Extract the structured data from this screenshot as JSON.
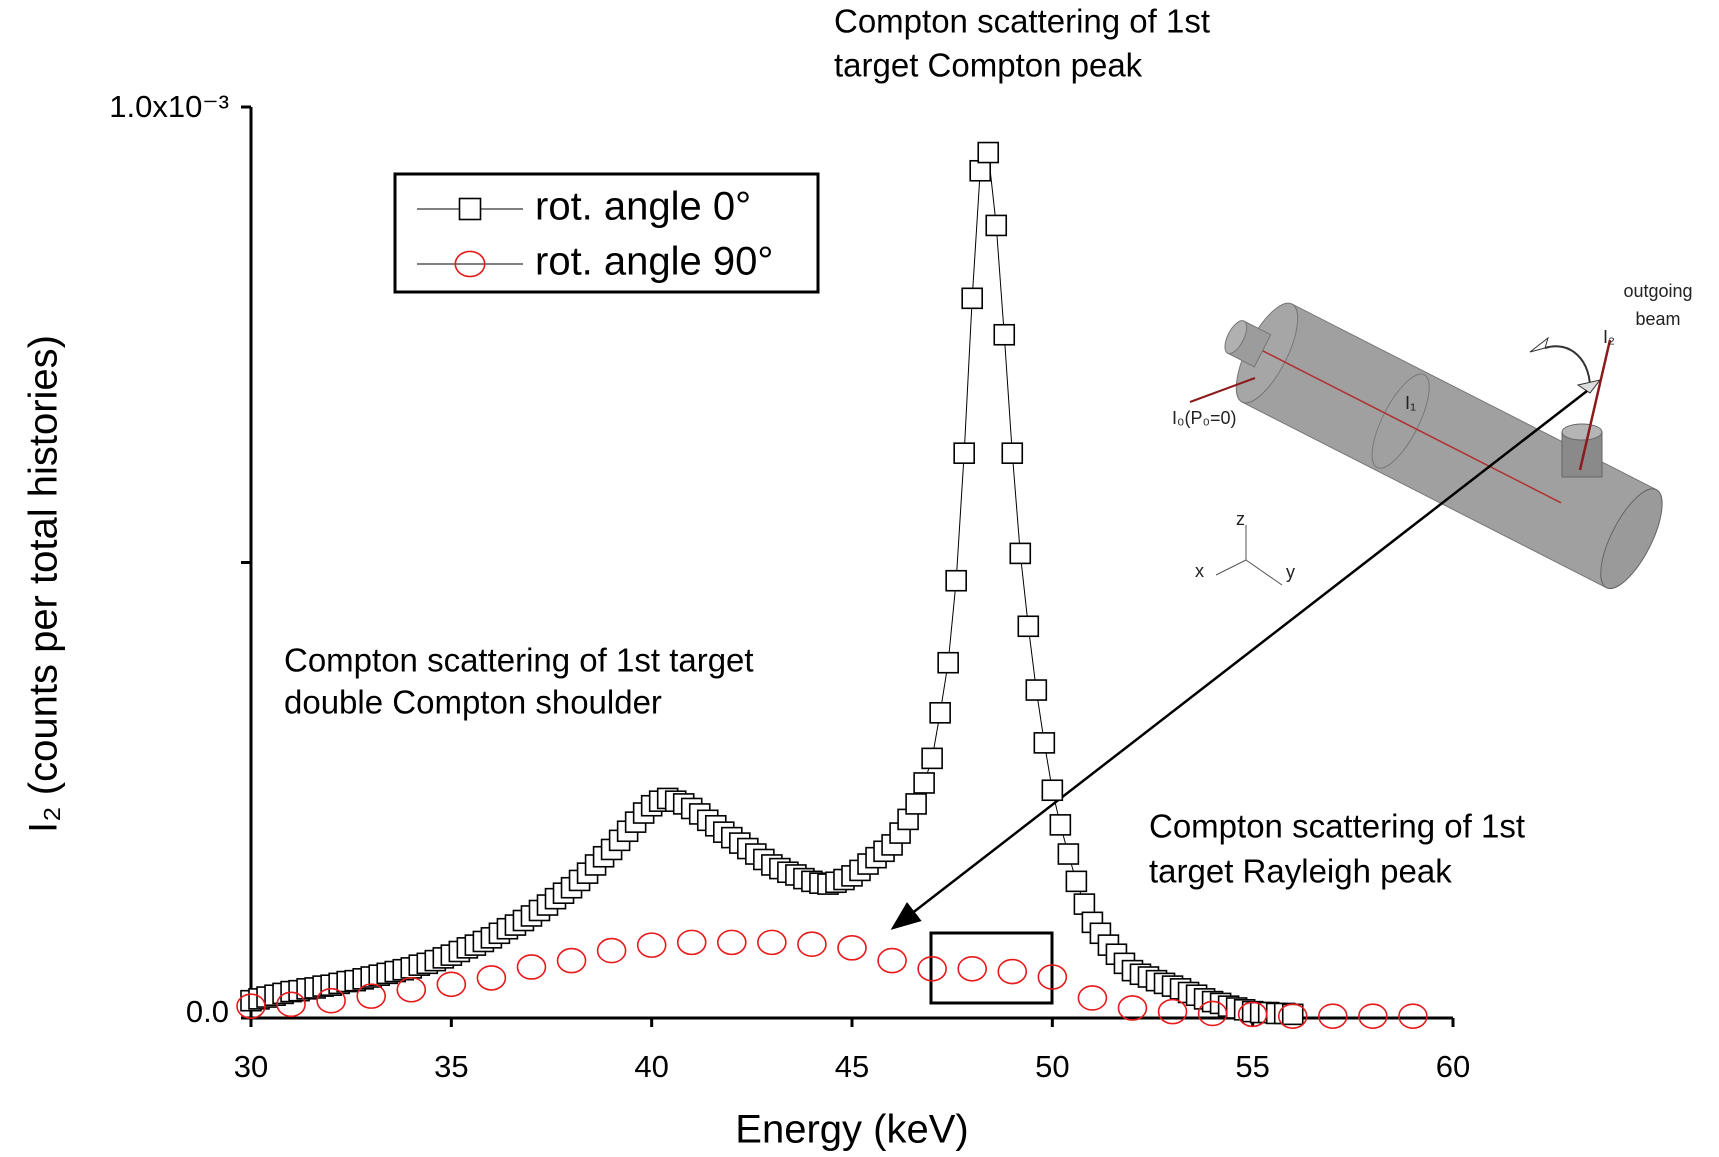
{
  "chart_data": {
    "type": "scatter",
    "x_label": "Energy (keV)",
    "y_label": "I₂ (counts per total histories)",
    "xlim": [
      30,
      60
    ],
    "xticks": [
      30,
      35,
      40,
      45,
      50,
      55,
      60
    ],
    "ylim": [
      0,
      0.001
    ],
    "yticks": [
      {
        "value": 0,
        "label": "0.0"
      },
      {
        "value": 0.0005,
        "label": null
      },
      {
        "value": 0.001,
        "label": "1.0x10⁻³"
      }
    ],
    "grid": false,
    "legend": "upper left",
    "annotations": [
      [
        "Compton scattering of 1st",
        "target Compton peak"
      ],
      [
        "Compton scattering of 1st  target",
        "double Compton shoulder"
      ],
      [
        "Compton scattering of 1st",
        "target Rayleigh peak"
      ]
    ],
    "inset_labels": [
      "outgoing",
      "beam",
      "I₂",
      "I₁",
      "I₀(P₀=0)",
      "x",
      "y",
      "z"
    ],
    "series": [
      {
        "name": "rot. angle 0°",
        "color": "#000000",
        "marker": "square",
        "line": true,
        "x": [
          30,
          30.2,
          30.4,
          30.6,
          30.8,
          31,
          31.2,
          31.4,
          31.6,
          31.8,
          32,
          32.2,
          32.4,
          32.6,
          32.8,
          33,
          33.2,
          33.4,
          33.6,
          33.8,
          34,
          34.2,
          34.4,
          34.6,
          34.8,
          35,
          35.2,
          35.4,
          35.6,
          35.8,
          36,
          36.2,
          36.4,
          36.6,
          36.8,
          37,
          37.2,
          37.4,
          37.6,
          37.8,
          38,
          38.2,
          38.4,
          38.6,
          38.8,
          39,
          39.2,
          39.4,
          39.6,
          39.8,
          40,
          40.2,
          40.4,
          40.6,
          40.8,
          41,
          41.2,
          41.4,
          41.6,
          41.8,
          42,
          42.2,
          42.4,
          42.6,
          42.8,
          43,
          43.2,
          43.4,
          43.6,
          43.8,
          44,
          44.2,
          44.4,
          44.6,
          44.8,
          45,
          45.2,
          45.4,
          45.6,
          45.8,
          46,
          46.2,
          46.4,
          46.6,
          46.8,
          47,
          47.2,
          47.4,
          47.6,
          47.8,
          48,
          48.2,
          48.4,
          48.6,
          48.8,
          49,
          49.2,
          49.4,
          49.6,
          49.8,
          50,
          50.2,
          50.4,
          50.6,
          50.8,
          51,
          51.2,
          51.4,
          51.6,
          51.8,
          52,
          52.2,
          52.4,
          52.6,
          52.8,
          53,
          53.2,
          53.4,
          53.6,
          53.8,
          54,
          54.2,
          54.4,
          54.6,
          54.8,
          55,
          55.2,
          55.4,
          55.6,
          55.8,
          56
        ],
        "values": [
          1.9e-05,
          2.1e-05,
          2.3e-05,
          2.5e-05,
          2.7e-05,
          2.9e-05,
          3e-05,
          3.2e-05,
          3.3e-05,
          3.5e-05,
          3.6e-05,
          3.8e-05,
          4e-05,
          4.1e-05,
          4.3e-05,
          4.5e-05,
          4.7e-05,
          4.9e-05,
          5.1e-05,
          5.3e-05,
          5.5e-05,
          5.8e-05,
          6e-05,
          6.3e-05,
          6.6e-05,
          6.9e-05,
          7.3e-05,
          7.7e-05,
          8e-05,
          8.4e-05,
          8.8e-05,
          9.3e-05,
          9.8e-05,
          0.000102,
          0.000107,
          0.000112,
          0.000118,
          0.000124,
          0.000131,
          0.000137,
          0.000143,
          0.000151,
          0.000159,
          0.000168,
          0.000177,
          0.000185,
          0.000195,
          0.000205,
          0.000215,
          0.000225,
          0.000233,
          0.000238,
          0.000241,
          0.000238,
          0.000235,
          0.00023,
          0.000224,
          0.000217,
          0.000211,
          0.000204,
          0.000198,
          0.000192,
          0.000186,
          0.00018,
          0.000174,
          0.000168,
          0.000164,
          0.00016,
          0.000157,
          0.000153,
          0.00015,
          0.000148,
          0.000147,
          0.000149,
          0.000152,
          0.000156,
          0.000162,
          0.000169,
          0.000176,
          0.000183,
          0.00019,
          0.000203,
          0.000218,
          0.000235,
          0.000258,
          0.000285,
          0.000335,
          0.00039,
          0.00048,
          0.00062,
          0.00079,
          0.00093,
          0.00095,
          0.00087,
          0.00075,
          0.00062,
          0.00051,
          0.00043,
          0.00036,
          0.000302,
          0.00025,
          0.000212,
          0.00018,
          0.00015,
          0.000125,
          0.000105,
          9.3e-05,
          8e-05,
          7e-05,
          6e-05,
          5.2e-05,
          4.8e-05,
          4.5e-05,
          4.1e-05,
          3.8e-05,
          3.5e-05,
          3.2e-05,
          2.8e-05,
          2.5e-05,
          2.1e-05,
          1.8e-05,
          1.6e-05,
          1.3e-05,
          1.1e-05,
          9e-06,
          7e-06,
          6e-06,
          6e-06,
          5e-06,
          5e-06,
          4e-06
        ]
      },
      {
        "name": "rot. angle 90°",
        "color": "#e8191b",
        "marker": "circle",
        "line": false,
        "x": [
          30,
          31,
          32,
          33,
          34,
          35,
          36,
          37,
          38,
          39,
          40,
          41,
          42,
          43,
          44,
          45,
          46,
          47,
          48,
          49,
          50,
          51,
          52,
          53,
          54,
          55,
          56,
          57,
          58,
          59
        ],
        "values": [
          1.3e-05,
          1.5e-05,
          1.9e-05,
          2.4e-05,
          3.1e-05,
          3.7e-05,
          4.4e-05,
          5.6e-05,
          6.3e-05,
          7.4e-05,
          8e-05,
          8.3e-05,
          8.3e-05,
          8.3e-05,
          8.1e-05,
          7.7e-05,
          6.3e-05,
          5.4e-05,
          5.4e-05,
          5.1e-05,
          4.5e-05,
          2.2e-05,
          1.1e-05,
          7e-06,
          5e-06,
          4e-06,
          2e-06,
          2e-06,
          2e-06,
          2e-06
        ]
      }
    ]
  }
}
